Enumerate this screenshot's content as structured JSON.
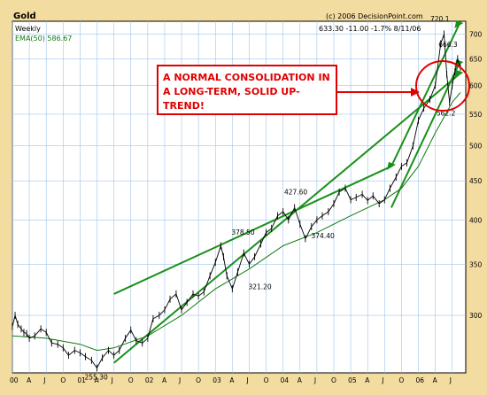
{
  "chart_data": {
    "type": "line",
    "title": "Gold",
    "subtitle": "Weekly",
    "ema_label": "EMA(50) 586.67",
    "copyright": "(c) 2006 DecisionPoint.com",
    "quote": "633.30  -11.00  -1.7%  8/11/06",
    "annotation": "A NORMAL CONSOLIDATION IN A LONG-TERM, SOLID UP-TREND!",
    "annotation_lines": [
      "A NORMAL CONSOLIDATION IN",
      "A LONG-TERM, SOLID UP-",
      "TREND!"
    ],
    "y_scale": "log",
    "ylim": [
      255,
      720
    ],
    "y_ticks": [
      300,
      350,
      400,
      450,
      500,
      550,
      600,
      650,
      700
    ],
    "x_ticks": [
      "00",
      "A",
      "J",
      "O",
      "01",
      "A",
      "J",
      "O",
      "02",
      "A",
      "J",
      "O",
      "03",
      "A",
      "J",
      "O",
      "04",
      "A",
      "J",
      "O",
      "05",
      "A",
      "J",
      "O",
      "06",
      "A",
      "J"
    ],
    "point_labels": [
      {
        "text": "255.30",
        "x": 2001.25,
        "y": 255.3
      },
      {
        "text": "378.50",
        "x": 2003.42,
        "y": 378.5
      },
      {
        "text": "321.20",
        "x": 2003.67,
        "y": 321.2
      },
      {
        "text": "427.60",
        "x": 2004.2,
        "y": 427.6
      },
      {
        "text": "374.40",
        "x": 2004.6,
        "y": 374.4
      },
      {
        "text": "720.1",
        "x": 2006.36,
        "y": 720.1
      },
      {
        "text": "666.3",
        "x": 2006.48,
        "y": 666.3
      },
      {
        "text": "562.2",
        "x": 2006.45,
        "y": 562.2
      }
    ],
    "series": [
      {
        "values": [
          [
            2000.0,
            290
          ],
          [
            2000.04,
            300
          ],
          [
            2000.08,
            292
          ],
          [
            2000.13,
            288
          ],
          [
            2000.17,
            285
          ],
          [
            2000.21,
            284
          ],
          [
            2000.25,
            280
          ],
          [
            2000.33,
            282
          ],
          [
            2000.42,
            288
          ],
          [
            2000.5,
            285
          ],
          [
            2000.58,
            276
          ],
          [
            2000.67,
            275
          ],
          [
            2000.75,
            272
          ],
          [
            2000.83,
            266
          ],
          [
            2000.92,
            270
          ],
          [
            2001.0,
            268
          ],
          [
            2001.08,
            265
          ],
          [
            2001.17,
            262
          ],
          [
            2001.25,
            256
          ],
          [
            2001.33,
            264
          ],
          [
            2001.42,
            270
          ],
          [
            2001.5,
            266
          ],
          [
            2001.58,
            270
          ],
          [
            2001.67,
            280
          ],
          [
            2001.75,
            287
          ],
          [
            2001.83,
            278
          ],
          [
            2001.92,
            276
          ],
          [
            2002.0,
            280
          ],
          [
            2002.08,
            297
          ],
          [
            2002.17,
            300
          ],
          [
            2002.25,
            305
          ],
          [
            2002.33,
            315
          ],
          [
            2002.42,
            320
          ],
          [
            2002.5,
            305
          ],
          [
            2002.58,
            312
          ],
          [
            2002.67,
            320
          ],
          [
            2002.75,
            318
          ],
          [
            2002.83,
            322
          ],
          [
            2002.92,
            338
          ],
          [
            2003.0,
            352
          ],
          [
            2003.08,
            370
          ],
          [
            2003.12,
            358
          ],
          [
            2003.17,
            338
          ],
          [
            2003.25,
            325
          ],
          [
            2003.33,
            342
          ],
          [
            2003.42,
            362
          ],
          [
            2003.5,
            350
          ],
          [
            2003.58,
            358
          ],
          [
            2003.67,
            372
          ],
          [
            2003.75,
            385
          ],
          [
            2003.83,
            390
          ],
          [
            2003.92,
            405
          ],
          [
            2004.0,
            410
          ],
          [
            2004.08,
            400
          ],
          [
            2004.17,
            415
          ],
          [
            2004.25,
            395
          ],
          [
            2004.33,
            378
          ],
          [
            2004.42,
            392
          ],
          [
            2004.5,
            400
          ],
          [
            2004.58,
            405
          ],
          [
            2004.67,
            410
          ],
          [
            2004.75,
            420
          ],
          [
            2004.83,
            435
          ],
          [
            2004.92,
            440
          ],
          [
            2005.0,
            425
          ],
          [
            2005.08,
            428
          ],
          [
            2005.17,
            432
          ],
          [
            2005.25,
            424
          ],
          [
            2005.33,
            430
          ],
          [
            2005.42,
            420
          ],
          [
            2005.5,
            425
          ],
          [
            2005.58,
            440
          ],
          [
            2005.67,
            455
          ],
          [
            2005.75,
            470
          ],
          [
            2005.83,
            475
          ],
          [
            2005.92,
            500
          ],
          [
            2006.0,
            540
          ],
          [
            2006.08,
            560
          ],
          [
            2006.17,
            575
          ],
          [
            2006.25,
            600
          ],
          [
            2006.33,
            680
          ],
          [
            2006.38,
            700
          ],
          [
            2006.42,
            620
          ],
          [
            2006.46,
            570
          ],
          [
            2006.5,
            600
          ],
          [
            2006.54,
            625
          ],
          [
            2006.58,
            650
          ],
          [
            2006.62,
            633
          ]
        ]
      },
      {
        "values": [
          [
            2000.0,
            282
          ],
          [
            2000.5,
            280
          ],
          [
            2001.0,
            275
          ],
          [
            2001.25,
            270
          ],
          [
            2001.5,
            272
          ],
          [
            2002.0,
            282
          ],
          [
            2002.5,
            300
          ],
          [
            2003.0,
            325
          ],
          [
            2003.5,
            345
          ],
          [
            2004.0,
            370
          ],
          [
            2004.5,
            385
          ],
          [
            2005.0,
            405
          ],
          [
            2005.5,
            425
          ],
          [
            2005.75,
            440
          ],
          [
            2006.0,
            470
          ],
          [
            2006.25,
            520
          ],
          [
            2006.5,
            570
          ],
          [
            2006.62,
            587
          ]
        ]
      }
    ],
    "trendlines": [
      {
        "from": [
          2001.5,
          320
        ],
        "to": [
          2005.6,
          470
        ]
      },
      {
        "from": [
          2001.5,
          260
        ],
        "to": [
          2006.6,
          620
        ]
      },
      {
        "from": [
          2005.6,
          470
        ],
        "to": [
          2006.6,
          720
        ]
      },
      {
        "from": [
          2005.6,
          415
        ],
        "to": [
          2006.6,
          640
        ]
      }
    ]
  }
}
